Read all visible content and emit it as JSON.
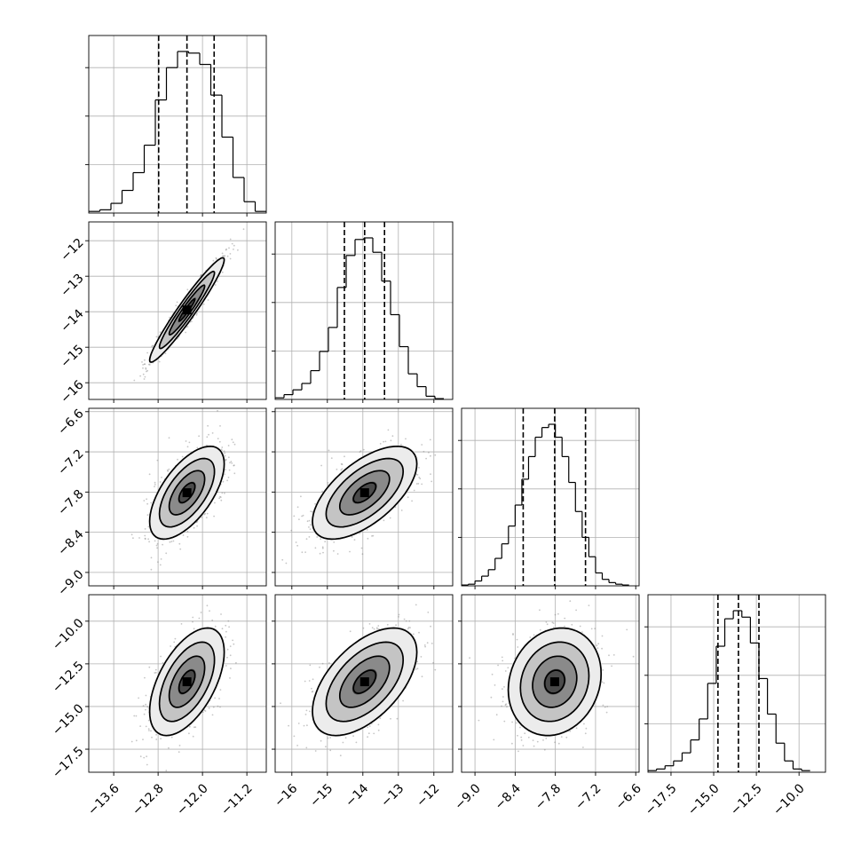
{
  "chart_data": {
    "type": "corner",
    "grid": true,
    "parameters": 4,
    "param_ticks": [
      [
        "−13.6",
        "−12.8",
        "−12.0",
        "−11.2"
      ],
      [
        "−16",
        "−15",
        "−14",
        "−13",
        "−12"
      ],
      [
        "−9.0",
        "−8.4",
        "−7.8",
        "−7.2",
        "−6.6"
      ],
      [
        "−17.5",
        "−15.0",
        "−12.5",
        "−10.0"
      ]
    ],
    "param_tick_values": [
      [
        -13.6,
        -12.8,
        -12.0,
        -11.2
      ],
      [
        -16,
        -15,
        -14,
        -13,
        -12
      ],
      [
        -9.0,
        -8.4,
        -7.8,
        -7.2,
        -6.6
      ],
      [
        -17.5,
        -15.0,
        -12.5,
        -10.0
      ]
    ],
    "param_ranges": [
      [
        -14.05,
        -10.85
      ],
      [
        -16.47,
        -11.47
      ],
      [
        -9.2,
        -6.55
      ],
      [
        -18.85,
        -8.45
      ]
    ],
    "marginals": [
      {
        "param": 0,
        "quantiles": [
          -12.79,
          -12.28,
          -11.79
        ],
        "bin_edges": [
          -14.05,
          -13.85,
          -13.65,
          -13.45,
          -13.25,
          -13.05,
          -12.85,
          -12.65,
          -12.45,
          -12.25,
          -12.05,
          -11.85,
          -11.65,
          -11.45,
          -11.25,
          -11.05,
          -10.85
        ],
        "counts": [
          0.01,
          0.02,
          0.06,
          0.14,
          0.25,
          0.42,
          0.7,
          0.9,
          1.0,
          0.99,
          0.92,
          0.73,
          0.47,
          0.22,
          0.07,
          0.01
        ]
      },
      {
        "param": 1,
        "quantiles": [
          -14.52,
          -13.95,
          -13.39
        ],
        "bin_edges": [
          -16.47,
          -16.22,
          -15.97,
          -15.72,
          -15.47,
          -15.22,
          -14.97,
          -14.72,
          -14.47,
          -14.22,
          -13.97,
          -13.72,
          -13.47,
          -13.22,
          -12.97,
          -12.72,
          -12.47,
          -12.22,
          -11.97,
          -11.72
        ],
        "counts": [
          0.01,
          0.03,
          0.06,
          0.1,
          0.18,
          0.3,
          0.45,
          0.7,
          0.9,
          1.0,
          1.01,
          0.92,
          0.74,
          0.53,
          0.33,
          0.16,
          0.08,
          0.02,
          0.005
        ]
      },
      {
        "param": 2,
        "quantiles": [
          -8.28,
          -7.81,
          -7.35
        ],
        "bin_edges": [
          -9.2,
          -9.1,
          -9.0,
          -8.9,
          -8.8,
          -8.7,
          -8.6,
          -8.5,
          -8.4,
          -8.3,
          -8.2,
          -8.1,
          -8.0,
          -7.9,
          -7.8,
          -7.7,
          -7.6,
          -7.5,
          -7.4,
          -7.3,
          -7.2,
          -7.1,
          -7.0,
          -6.9,
          -6.8,
          -6.7
        ],
        "counts": [
          0.005,
          0.01,
          0.03,
          0.06,
          0.1,
          0.17,
          0.26,
          0.37,
          0.5,
          0.66,
          0.8,
          0.92,
          0.98,
          1.0,
          0.92,
          0.8,
          0.64,
          0.46,
          0.3,
          0.18,
          0.08,
          0.04,
          0.02,
          0.01,
          0.005
        ]
      },
      {
        "param": 3,
        "quantiles": [
          -14.75,
          -13.55,
          -12.35
        ],
        "bin_edges": [
          -18.85,
          -18.35,
          -17.85,
          -17.35,
          -16.85,
          -16.35,
          -15.85,
          -15.35,
          -14.85,
          -14.35,
          -13.85,
          -13.35,
          -12.85,
          -12.35,
          -11.85,
          -11.35,
          -10.85,
          -10.35,
          -9.85,
          -9.35
        ],
        "counts": [
          0.01,
          0.02,
          0.04,
          0.07,
          0.12,
          0.2,
          0.33,
          0.55,
          0.78,
          0.95,
          1.0,
          0.96,
          0.8,
          0.58,
          0.36,
          0.18,
          0.07,
          0.02,
          0.01
        ]
      }
    ],
    "pairs": [
      {
        "x_param": 0,
        "y_param": 1,
        "mean": [
          -12.28,
          -13.95
        ],
        "std": [
          0.32,
          0.7
        ],
        "corr": 0.96
      },
      {
        "x_param": 0,
        "y_param": 2,
        "mean": [
          -12.28,
          -7.81
        ],
        "std": [
          0.32,
          0.33
        ],
        "corr": 0.62
      },
      {
        "x_param": 1,
        "y_param": 2,
        "mean": [
          -13.95,
          -7.81
        ],
        "std": [
          0.7,
          0.33
        ],
        "corr": 0.62
      },
      {
        "x_param": 0,
        "y_param": 3,
        "mean": [
          -12.28,
          -13.55
        ],
        "std": [
          0.32,
          1.5
        ],
        "corr": 0.55
      },
      {
        "x_param": 1,
        "y_param": 3,
        "mean": [
          -13.95,
          -13.55
        ],
        "std": [
          0.7,
          1.5
        ],
        "corr": 0.55
      },
      {
        "x_param": 2,
        "y_param": 3,
        "mean": [
          -7.81,
          -13.55
        ],
        "std": [
          0.33,
          1.5
        ],
        "corr": 0.15
      }
    ]
  }
}
